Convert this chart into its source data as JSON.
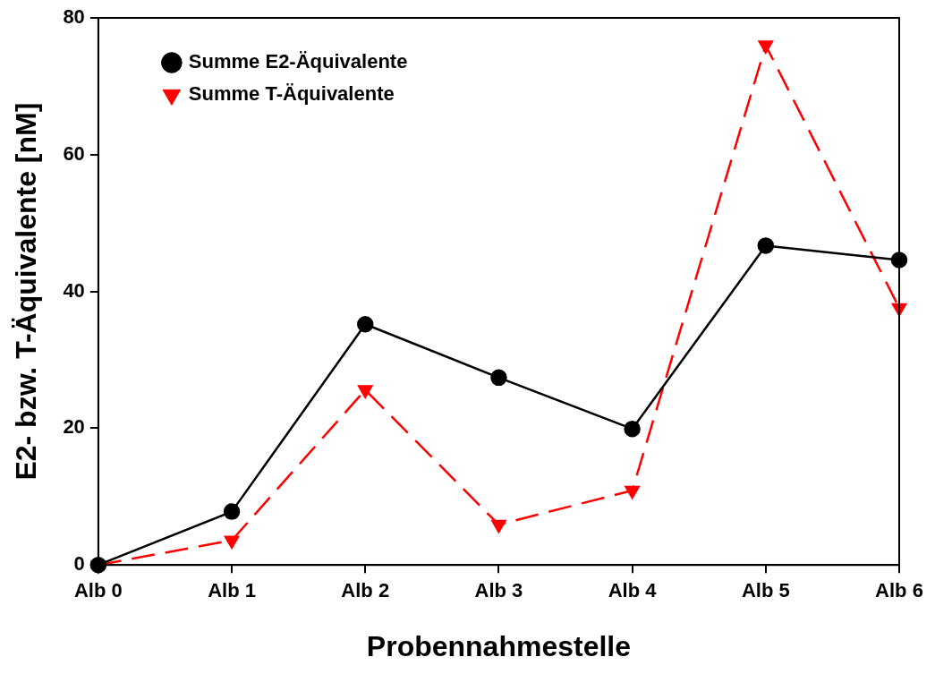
{
  "chart_data": {
    "type": "line",
    "xlabel": "Probennahmestelle",
    "ylabel": "E2- bzw. T-Äquivalente [nM]",
    "categories": [
      "Alb 0",
      "Alb 1",
      "Alb 2",
      "Alb 3",
      "Alb 4",
      "Alb 5",
      "Alb 6"
    ],
    "series": [
      {
        "name": "Summe E2-Äquivalente",
        "color": "#000000",
        "marker": "circle",
        "line_style": "solid",
        "values": [
          0,
          7.8,
          35.2,
          27.4,
          19.9,
          46.7,
          44.6
        ]
      },
      {
        "name": "Summe T-Äquivalente",
        "color": "#ff0000",
        "marker": "triangle",
        "line_style": "dashed",
        "values": [
          0,
          3.6,
          25.6,
          5.9,
          10.9,
          76.0,
          37.6
        ]
      }
    ],
    "ylim": [
      0,
      80
    ],
    "yticks": [
      0,
      20,
      40,
      60,
      80
    ],
    "grid": false,
    "legend": "top left"
  }
}
